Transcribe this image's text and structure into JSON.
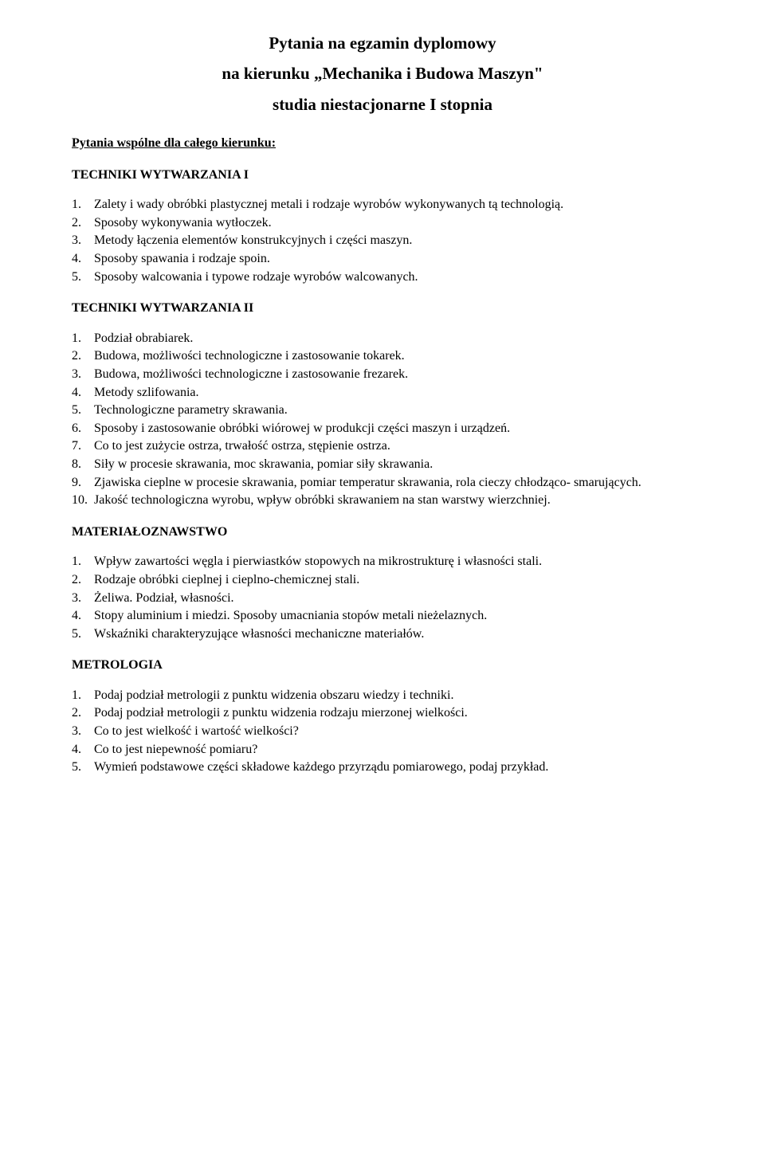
{
  "title": {
    "line1": "Pytania na egzamin dyplomowy",
    "line2": "na kierunku „Mechanika i Budowa Maszyn\"",
    "line3": "studia niestacjonarne I stopnia"
  },
  "commonHeading": "Pytania wspólne dla całego kierunku:",
  "sections": [
    {
      "heading": "TECHNIKI WYTWARZANIA I",
      "items": [
        "Zalety i wady obróbki plastycznej metali i rodzaje wyrobów wykonywanych tą technologią.",
        "Sposoby wykonywania wytłoczek.",
        "Metody łączenia elementów konstrukcyjnych i części maszyn.",
        "Sposoby spawania i rodzaje spoin.",
        "Sposoby walcowania i typowe rodzaje wyrobów walcowanych."
      ]
    },
    {
      "heading": "TECHNIKI WYTWARZANIA II",
      "items": [
        "Podział obrabiarek.",
        "Budowa, możliwości technologiczne i zastosowanie tokarek.",
        "Budowa, możliwości technologiczne i zastosowanie frezarek.",
        "Metody szlifowania.",
        "Technologiczne parametry skrawania.",
        "Sposoby i zastosowanie obróbki wiórowej w produkcji części maszyn i urządzeń.",
        "Co to jest zużycie ostrza, trwałość ostrza, stępienie ostrza.",
        "Siły w procesie skrawania, moc skrawania, pomiar siły skrawania.",
        "Zjawiska cieplne w procesie skrawania, pomiar temperatur skrawania, rola cieczy chłodząco- smarujących.",
        "Jakość technologiczna wyrobu, wpływ obróbki skrawaniem na stan warstwy wierzchniej."
      ]
    },
    {
      "heading": "MATERIAŁOZNAWSTWO",
      "items": [
        "Wpływ zawartości węgla i pierwiastków stopowych na mikrostrukturę i własności stali.",
        "Rodzaje obróbki cieplnej i cieplno-chemicznej stali.",
        "Żeliwa. Podział, własności.",
        "Stopy aluminium i miedzi. Sposoby umacniania stopów metali nieżelaznych.",
        "Wskaźniki charakteryzujące własności mechaniczne materiałów."
      ]
    },
    {
      "heading": "METROLOGIA",
      "items": [
        "Podaj podział metrologii z punktu widzenia obszaru wiedzy i techniki.",
        "Podaj podział metrologii z punktu widzenia rodzaju mierzonej wielkości.",
        "Co to jest wielkość i wartość wielkości?",
        "Co to jest niepewność pomiaru?",
        "Wymień podstawowe części składowe każdego przyrządu pomiarowego, podaj przykład."
      ]
    }
  ]
}
